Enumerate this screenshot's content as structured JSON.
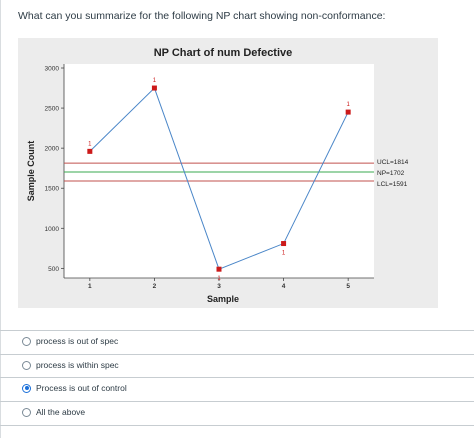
{
  "question": {
    "text": "What can you summarize for the following NP chart showing non-conformance:"
  },
  "chart_data": {
    "type": "line",
    "title": "NP Chart of num Defective",
    "xlabel": "Sample",
    "ylabel": "Sample Count",
    "x": [
      1,
      2,
      3,
      4,
      5
    ],
    "xticks": [
      "1",
      "2",
      "3",
      "4",
      "5"
    ],
    "values": [
      1960,
      2750,
      490,
      810,
      2450
    ],
    "point_labels": [
      "1",
      "1",
      "1",
      "1",
      "1"
    ],
    "yticks": [
      "500",
      "1000",
      "1500",
      "2000",
      "2500",
      "3000"
    ],
    "ylim": [
      380,
      3050
    ],
    "xlim": [
      0.6,
      5.4
    ],
    "control_lines": [
      {
        "name": "UCL",
        "value": 1814,
        "label": "UCL=1814",
        "color": "#c0504d"
      },
      {
        "name": "NP",
        "value": 1702,
        "label": "NP=1702",
        "color": "#3aa84f"
      },
      {
        "name": "LCL",
        "value": 1591,
        "label": "LCL=1591",
        "color": "#c0504d"
      }
    ],
    "line_color": "#4a86c8",
    "marker_color": "#cc1a1a",
    "plot_background": "#ececec",
    "grid": false
  },
  "options": [
    {
      "label": "process is out of spec",
      "selected": false
    },
    {
      "label": "process is within spec",
      "selected": false
    },
    {
      "label": "Process is out of control",
      "selected": true
    },
    {
      "label": "All the above",
      "selected": false
    }
  ]
}
